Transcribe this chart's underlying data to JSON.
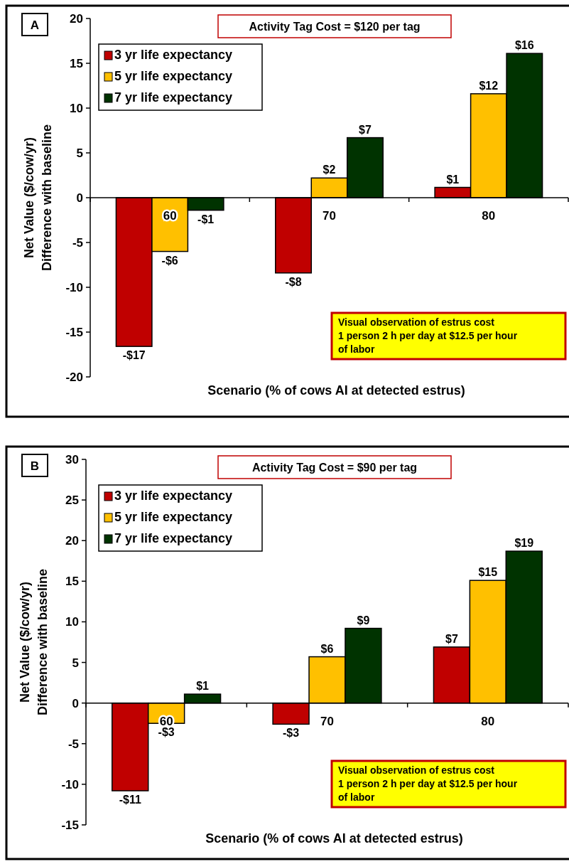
{
  "chart_data": [
    {
      "type": "bar",
      "title": "Activity Tag Cost = $120 per tag",
      "xlabel": "Scenario (% of cows AI at detected estrus)",
      "ylabel": "Net Value ($/cow/yr)\nDifference with baseline",
      "categories": [
        "60",
        "70",
        "80"
      ],
      "series": [
        {
          "name": "3 yr life expectancy",
          "color": "#c00000",
          "values": [
            -16.6,
            -8.4,
            1.15
          ],
          "value_labels": [
            "-$17",
            "-$8",
            "$1"
          ]
        },
        {
          "name": "5 yr life expectancy",
          "color": "#ffc000",
          "values": [
            -6.0,
            2.2,
            11.6
          ],
          "value_labels": [
            "-$6",
            "$2",
            "$12"
          ]
        },
        {
          "name": "7 yr life expectancy",
          "color": "#003300",
          "values": [
            -1.4,
            6.7,
            16.1
          ],
          "value_labels": [
            "-$1",
            "$7",
            "$16"
          ]
        }
      ],
      "ylim": [
        -20,
        20
      ],
      "yticks": [
        -20,
        -15,
        -10,
        -5,
        0,
        5,
        10,
        15,
        20
      ],
      "grid": false,
      "legend": "top left",
      "annotations": [
        "A",
        "Visual observation of estrus cost\n1 person 2 h per day at $12.5 per hour\nof labor"
      ]
    },
    {
      "type": "bar",
      "title": "Activity Tag Cost = $90 per tag",
      "xlabel": "Scenario (% of cows AI at detected estrus)",
      "ylabel": "Net Value ($/cow/yr)\nDifference with baseline",
      "categories": [
        "60",
        "70",
        "80"
      ],
      "series": [
        {
          "name": "3 yr life expectancy",
          "color": "#c00000",
          "values": [
            -10.8,
            -2.6,
            6.9
          ],
          "value_labels": [
            "-$11",
            "-$3",
            "$7"
          ]
        },
        {
          "name": "5 yr life expectancy",
          "color": "#ffc000",
          "values": [
            -2.5,
            5.7,
            15.1
          ],
          "value_labels": [
            "-$3",
            "$6",
            "$15"
          ]
        },
        {
          "name": "7 yr life expectancy",
          "color": "#003300",
          "values": [
            1.1,
            9.2,
            18.7
          ],
          "value_labels": [
            "$1",
            "$9",
            "$19"
          ]
        }
      ],
      "ylim": [
        -15,
        30
      ],
      "yticks": [
        -15,
        -10,
        -5,
        0,
        5,
        10,
        15,
        20,
        25,
        30
      ],
      "grid": false,
      "legend": "top left",
      "annotations": [
        "B",
        "Visual observation of estrus cost\n1 person 2 h per day at $12.5 per hour\nof labor"
      ]
    }
  ]
}
